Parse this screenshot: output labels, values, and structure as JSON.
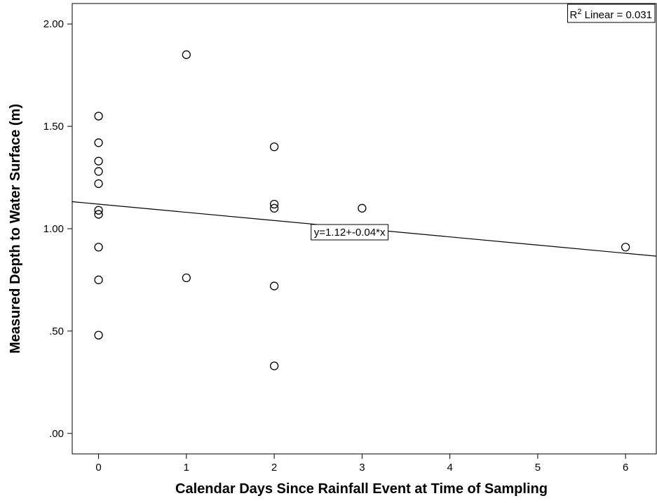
{
  "chart_data": {
    "type": "scatter",
    "xlabel": "Calendar Days Since Rainfall Event at Time of Sampling",
    "ylabel": "Measured Depth to Water Surface (m)",
    "xlim": [
      -0.3,
      6.35
    ],
    "ylim": [
      -0.1,
      2.1
    ],
    "x_ticks": [
      0,
      1,
      2,
      3,
      4,
      5,
      6
    ],
    "x_tick_labels": [
      "0",
      "1",
      "2",
      "3",
      "4",
      "5",
      "6"
    ],
    "y_ticks": [
      0,
      0.5,
      1,
      1.5,
      2
    ],
    "y_tick_labels": [
      ".00",
      ".50",
      "1.00",
      "1.50",
      "2.00"
    ],
    "grid": false,
    "legend": "none",
    "marker": "open-circle",
    "points": [
      {
        "x": 0,
        "y": 1.55
      },
      {
        "x": 0,
        "y": 1.42
      },
      {
        "x": 0,
        "y": 1.33
      },
      {
        "x": 0,
        "y": 1.28
      },
      {
        "x": 0,
        "y": 1.22
      },
      {
        "x": 0,
        "y": 1.09
      },
      {
        "x": 0,
        "y": 1.07
      },
      {
        "x": 0,
        "y": 0.91
      },
      {
        "x": 0,
        "y": 0.75
      },
      {
        "x": 0,
        "y": 0.48
      },
      {
        "x": 1,
        "y": 1.85
      },
      {
        "x": 1,
        "y": 0.76
      },
      {
        "x": 2,
        "y": 1.4
      },
      {
        "x": 2,
        "y": 1.12
      },
      {
        "x": 2,
        "y": 1.1
      },
      {
        "x": 2,
        "y": 0.72
      },
      {
        "x": 2,
        "y": 0.33
      },
      {
        "x": 3,
        "y": 1.1
      },
      {
        "x": 6,
        "y": 0.91
      }
    ],
    "fit_line": {
      "intercept": 1.12,
      "slope": -0.04,
      "equation_label": "y=1.12+-0.04*x"
    },
    "r2_label": {
      "prefix": "R",
      "superscript": "2",
      "text": " Linear = 0.031"
    },
    "colors": {
      "marker_stroke": "#000000",
      "line": "#000000",
      "axis": "#000000",
      "background": "#ffffff"
    }
  }
}
